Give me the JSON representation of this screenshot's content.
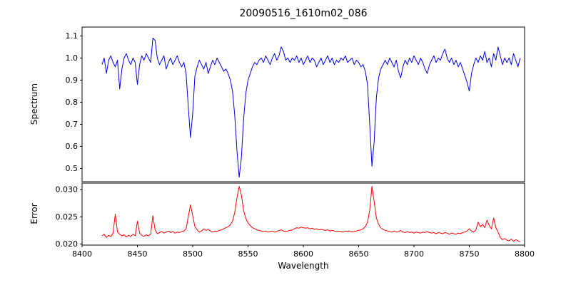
{
  "title": "20090516_1610m02_086",
  "chart_data": [
    {
      "type": "line",
      "name": "spectrum",
      "ylabel": "Spectrum",
      "color": "#0000ee",
      "xlim": [
        8400,
        8800
      ],
      "ylim": [
        0.44,
        1.14
      ],
      "xtick_values": [],
      "xtick_labels": null,
      "ytick_values": [
        0.5,
        0.6,
        0.7,
        0.8,
        0.9,
        1.0,
        1.1
      ],
      "ytick_labels": [
        "0.5",
        "0.6",
        "0.7",
        "0.8",
        "0.9",
        "1.0",
        "1.1"
      ],
      "x_start": 8418,
      "x_step": 2,
      "values": [
        0.97,
        1.0,
        0.93,
        0.99,
        1.01,
        0.98,
        0.96,
        0.99,
        0.86,
        0.95,
        1.0,
        1.02,
        0.99,
        0.97,
        1.0,
        0.98,
        0.88,
        0.97,
        1.01,
        0.99,
        1.02,
        1.0,
        0.98,
        1.09,
        1.08,
        1.0,
        0.97,
        0.99,
        1.01,
        0.95,
        0.98,
        1.0,
        0.97,
        0.99,
        1.01,
        0.98,
        0.96,
        0.98,
        0.93,
        0.78,
        0.64,
        0.75,
        0.92,
        0.96,
        0.99,
        0.97,
        0.95,
        0.98,
        0.93,
        0.96,
        0.99,
        0.97,
        1.0,
        0.98,
        0.96,
        0.94,
        0.95,
        0.93,
        0.9,
        0.85,
        0.74,
        0.58,
        0.46,
        0.55,
        0.72,
        0.84,
        0.9,
        0.93,
        0.96,
        0.98,
        0.97,
        0.99,
        1.0,
        0.98,
        1.01,
        0.99,
        0.97,
        1.0,
        1.02,
        0.99,
        1.01,
        1.05,
        1.03,
        0.99,
        1.0,
        0.98,
        1.0,
        0.99,
        1.01,
        0.98,
        1.0,
        0.97,
        0.99,
        1.01,
        0.98,
        1.0,
        0.99,
        0.96,
        0.98,
        1.0,
        0.97,
        0.99,
        1.01,
        0.98,
        1.0,
        0.97,
        0.99,
        0.98,
        1.0,
        0.99,
        1.01,
        0.98,
        0.99,
        1.0,
        0.97,
        0.99,
        0.98,
        0.96,
        0.97,
        0.94,
        0.88,
        0.7,
        0.51,
        0.62,
        0.82,
        0.91,
        0.95,
        0.97,
        0.99,
        0.97,
        1.0,
        0.98,
        0.96,
        0.99,
        0.94,
        0.91,
        0.96,
        0.99,
        0.97,
        1.0,
        0.98,
        1.01,
        0.99,
        0.97,
        1.0,
        0.98,
        0.95,
        0.93,
        0.97,
        0.99,
        1.01,
        0.98,
        1.0,
        0.99,
        1.02,
        1.04,
        1.0,
        0.98,
        1.0,
        0.97,
        0.99,
        0.96,
        0.98,
        0.95,
        0.92,
        0.89,
        0.85,
        0.93,
        0.97,
        1.0,
        0.98,
        1.01,
        0.99,
        1.03,
        0.98,
        1.0,
        0.96,
        1.02,
        0.99,
        1.05,
        1.01,
        0.97,
        1.0,
        0.98,
        1.0,
        0.97,
        1.02,
        0.99,
        0.96,
        1.0
      ]
    },
    {
      "type": "line",
      "name": "error",
      "ylabel": "Error",
      "xlabel": "Wavelength",
      "color": "#ff0000",
      "xlim": [
        8400,
        8800
      ],
      "ylim": [
        0.0198,
        0.0312
      ],
      "xtick_values": [
        8400,
        8450,
        8500,
        8550,
        8600,
        8650,
        8700,
        8750,
        8800
      ],
      "xtick_labels": [
        "8400",
        "8450",
        "8500",
        "8550",
        "8600",
        "8650",
        "8700",
        "8750",
        "8800"
      ],
      "ytick_values": [
        0.02,
        0.025,
        0.03
      ],
      "ytick_labels": [
        "0.020",
        "0.025",
        "0.030"
      ],
      "x_start": 8418,
      "x_step": 2,
      "values": [
        0.0215,
        0.0218,
        0.0212,
        0.0216,
        0.0214,
        0.022,
        0.0255,
        0.0222,
        0.0218,
        0.0215,
        0.0217,
        0.0213,
        0.0216,
        0.0214,
        0.0218,
        0.0215,
        0.0242,
        0.022,
        0.0216,
        0.0214,
        0.0217,
        0.0215,
        0.0218,
        0.0252,
        0.0226,
        0.0219,
        0.0221,
        0.0223,
        0.022,
        0.0222,
        0.0224,
        0.0221,
        0.0223,
        0.022,
        0.0222,
        0.0221,
        0.0223,
        0.0224,
        0.0228,
        0.025,
        0.0272,
        0.0252,
        0.0232,
        0.0226,
        0.0222,
        0.0224,
        0.0228,
        0.0225,
        0.0227,
        0.0224,
        0.0222,
        0.0224,
        0.0223,
        0.0225,
        0.0226,
        0.0228,
        0.023,
        0.0232,
        0.0235,
        0.0242,
        0.0258,
        0.0285,
        0.0306,
        0.029,
        0.0262,
        0.0247,
        0.0239,
        0.0234,
        0.023,
        0.0228,
        0.0226,
        0.0225,
        0.0224,
        0.0223,
        0.0224,
        0.0222,
        0.0223,
        0.0224,
        0.0222,
        0.0223,
        0.0225,
        0.0226,
        0.0224,
        0.0223,
        0.0224,
        0.0225,
        0.0226,
        0.0228,
        0.023,
        0.0229,
        0.0231,
        0.023,
        0.0229,
        0.023,
        0.0228,
        0.0229,
        0.0227,
        0.0228,
        0.0226,
        0.0227,
        0.0226,
        0.0225,
        0.0226,
        0.0224,
        0.0225,
        0.0224,
        0.0223,
        0.0224,
        0.0223,
        0.0222,
        0.0224,
        0.0223,
        0.0224,
        0.0222,
        0.0223,
        0.0224,
        0.0225,
        0.0226,
        0.0228,
        0.0232,
        0.024,
        0.0262,
        0.0306,
        0.0278,
        0.0248,
        0.0236,
        0.023,
        0.0227,
        0.0225,
        0.0224,
        0.0223,
        0.0222,
        0.0224,
        0.0222,
        0.0223,
        0.0225,
        0.0222,
        0.0221,
        0.0223,
        0.0221,
        0.0222,
        0.022,
        0.0222,
        0.0221,
        0.022,
        0.0222,
        0.0221,
        0.0223,
        0.0221,
        0.022,
        0.0221,
        0.0219,
        0.0221,
        0.022,
        0.0219,
        0.0221,
        0.022,
        0.0218,
        0.022,
        0.0219,
        0.0218,
        0.022,
        0.0219,
        0.0221,
        0.0222,
        0.0224,
        0.0228,
        0.0224,
        0.0222,
        0.0226,
        0.024,
        0.0232,
        0.0236,
        0.023,
        0.0244,
        0.0234,
        0.0228,
        0.0248,
        0.023,
        0.0222,
        0.0212,
        0.0208,
        0.021,
        0.0207,
        0.0206,
        0.0209,
        0.0205,
        0.0208,
        0.0206,
        0.0204
      ]
    }
  ]
}
